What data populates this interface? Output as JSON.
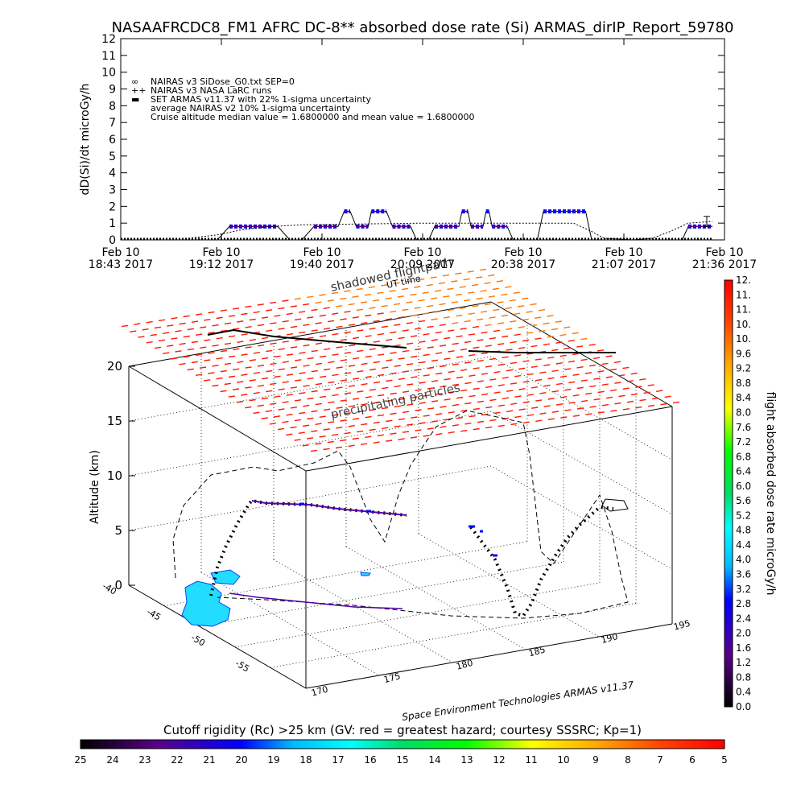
{
  "title": "NASAAFRCDC8_FM1 AFRC DC-8** absorbed dose rate (Si) ARMAS_dirIP_Report_59780",
  "top_chart": {
    "type": "line",
    "ylabel": "dD(Si)/dt microGy/h",
    "ylim": [
      0,
      12
    ],
    "y_ticks": [
      "0",
      "1",
      "2",
      "3",
      "4",
      "5",
      "6",
      "7",
      "8",
      "9",
      "10",
      "11",
      "12"
    ],
    "x_ticks": [
      {
        "date": "Feb 10",
        "time": "18:43 2017"
      },
      {
        "date": "Feb 10",
        "time": "19:12 2017"
      },
      {
        "date": "Feb 10",
        "time": "19:40 2017"
      },
      {
        "date": "Feb 10",
        "time": "20:09 2017"
      },
      {
        "date": "Feb 10",
        "time": "20:38 2017"
      },
      {
        "date": "Feb 10",
        "time": "21:07 2017"
      },
      {
        "date": "Feb 10",
        "time": "21:36 2017"
      }
    ],
    "legend": [
      {
        "symbol": "∞",
        "text": "NAIRAS v3 SiDose_G0.txt SEP=0"
      },
      {
        "symbol": "++",
        "text": "NAIRAS v3 NASA LaRC runs"
      },
      {
        "symbol": "▬",
        "text": "SET ARMAS v11.37 with 22% 1-sigma uncertainty",
        "color": "#0000ff"
      },
      {
        "symbol": "",
        "text": "average NAIRAS v2 10% 1-sigma uncertainty"
      },
      {
        "symbol": "",
        "text": "Cruise altitude median value = 1.6800000 and mean value = 1.6800000"
      }
    ],
    "series": [
      {
        "name": "SET ARMAS v11.37 with 22% 1-sigma uncertainty",
        "color": "#0000ff",
        "points": [
          [
            0,
            0
          ],
          [
            0.16,
            0
          ],
          [
            0.18,
            0.8
          ],
          [
            0.26,
            0.8
          ],
          [
            0.28,
            0
          ],
          [
            0.3,
            0
          ],
          [
            0.32,
            0.8
          ],
          [
            0.36,
            0.8
          ],
          [
            0.37,
            1.7
          ],
          [
            0.38,
            1.7
          ],
          [
            0.39,
            0.8
          ],
          [
            0.41,
            0.8
          ],
          [
            0.415,
            1.7
          ],
          [
            0.44,
            1.7
          ],
          [
            0.45,
            0.8
          ],
          [
            0.48,
            0.8
          ],
          [
            0.49,
            0
          ],
          [
            0.51,
            0
          ],
          [
            0.52,
            0.8
          ],
          [
            0.56,
            0.8
          ],
          [
            0.565,
            1.7
          ],
          [
            0.575,
            1.7
          ],
          [
            0.58,
            0.8
          ],
          [
            0.6,
            0.8
          ],
          [
            0.605,
            1.7
          ],
          [
            0.61,
            1.7
          ],
          [
            0.615,
            0.8
          ],
          [
            0.64,
            0.8
          ],
          [
            0.65,
            0
          ],
          [
            0.69,
            0
          ],
          [
            0.7,
            1.7
          ],
          [
            0.77,
            1.7
          ],
          [
            0.78,
            0
          ],
          [
            0.93,
            0
          ],
          [
            0.94,
            0.8
          ],
          [
            0.98,
            0.8
          ]
        ]
      },
      {
        "name": "NAIRAS v3 SiDose_G0.txt SEP=0",
        "color": "#000000",
        "points": [
          [
            0,
            0
          ],
          [
            0.05,
            0
          ],
          [
            0.1,
            0.05
          ],
          [
            0.16,
            0.3
          ],
          [
            0.2,
            0.6
          ],
          [
            0.25,
            0.8
          ],
          [
            0.3,
            0.9
          ],
          [
            0.4,
            0.95
          ],
          [
            0.5,
            1.0
          ],
          [
            0.6,
            1.0
          ],
          [
            0.7,
            1.0
          ],
          [
            0.75,
            1.0
          ],
          [
            0.78,
            0.5
          ],
          [
            0.8,
            0.1
          ],
          [
            0.85,
            0
          ],
          [
            0.88,
            0.1
          ],
          [
            0.91,
            0.5
          ],
          [
            0.94,
            1.0
          ],
          [
            0.98,
            1.1
          ]
        ]
      }
    ]
  },
  "bottom_chart": {
    "type": "scatter",
    "annotations": [
      "shadowed flightpath",
      "UT time",
      "precipitating particles"
    ],
    "zlabel": "Altitude (km)",
    "z_ticks": [
      "0",
      "5",
      "10",
      "15",
      "20"
    ],
    "lat_ticks": [
      "-40",
      "-45",
      "-50",
      "-55"
    ],
    "lon_ticks": [
      "170",
      "175",
      "180",
      "185",
      "190",
      "195"
    ],
    "footer": "Space Environment Technologies ARMAS v11.37"
  },
  "dose_colorbar": {
    "label": "flight absorbed dose rate microGy/h",
    "ticks": [
      "0.0",
      "0.4",
      "0.8",
      "1.2",
      "1.6",
      "2.0",
      "2.4",
      "2.8",
      "3.2",
      "3.6",
      "4.0",
      "4.4",
      "4.8",
      "5.2",
      "5.6",
      "6.0",
      "6.4",
      "6.8",
      "7.2",
      "7.6",
      "8.0",
      "8.4",
      "8.8",
      "9.2",
      "9.6",
      "10.",
      "10.",
      "11.",
      "11.",
      "12."
    ]
  },
  "rigidity_colorbar": {
    "label": "Cutoff rigidity (Rc) >25 km (GV: red = greatest hazard; courtesy SSSRC; Kp=1)",
    "ticks": [
      "25",
      "24",
      "23",
      "22",
      "21",
      "20",
      "19",
      "18",
      "17",
      "16",
      "15",
      "14",
      "13",
      "12",
      "11",
      "10",
      "9",
      "8",
      "7",
      "6",
      "5"
    ]
  },
  "colors": {
    "armas": "#0000ff",
    "nairas": "#000000",
    "hazard": "#ff2200",
    "land": "#22ddff"
  }
}
